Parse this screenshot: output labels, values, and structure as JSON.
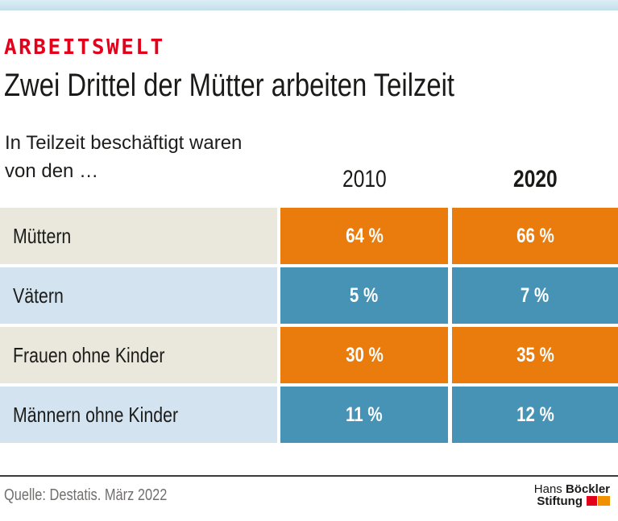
{
  "page": {
    "background": "#ffffff",
    "topbar_color": "#cfe6f0"
  },
  "header": {
    "kicker": "ARBEITSWELT",
    "kicker_color": "#e2001a",
    "title": "Zwei Drittel der Mütter arbeiten Teilzeit",
    "subtitle_line1": "In Teilzeit beschäftigt waren",
    "subtitle_line2": "von den …"
  },
  "table": {
    "columns": [
      {
        "label": "2010",
        "bold": false
      },
      {
        "label": "2020",
        "bold": true
      }
    ],
    "rows": [
      {
        "label": "Müttern",
        "values": [
          "64 %",
          "66 %"
        ],
        "cell_color": "#ea7c0e",
        "label_bg": "#eae7dc"
      },
      {
        "label": "Vätern",
        "values": [
          "5 %",
          "7 %"
        ],
        "cell_color": "#4793b6",
        "label_bg": "#d3e3ef"
      },
      {
        "label": "Frauen ohne Kinder",
        "values": [
          "30 %",
          "35 %"
        ],
        "cell_color": "#ea7c0e",
        "label_bg": "#eae7dc"
      },
      {
        "label": "Männern ohne Kinder",
        "values": [
          "11 %",
          "12 %"
        ],
        "cell_color": "#4793b6",
        "label_bg": "#d3e3ef"
      }
    ],
    "colors": {
      "orange": "#ea7c0e",
      "blue": "#4793b6",
      "label_beige": "#eae7dc",
      "label_lightblue": "#d3e3ef",
      "value_text": "#ffffff"
    }
  },
  "footer": {
    "source": "Quelle: Destatis. März 2022",
    "logo": {
      "line1_regular": "Hans",
      "line1_bold": "Böckler",
      "line2_bold": "Stiftung",
      "mark_red_color": "#e2001a",
      "mark_orange_color": "#f29100"
    }
  },
  "chart_data": {
    "type": "table",
    "kicker": "ARBEITSWELT",
    "title": "Zwei Drittel der Mütter arbeiten Teilzeit",
    "subtitle": "In Teilzeit beschäftigt waren von den …",
    "categories": [
      "Müttern",
      "Vätern",
      "Frauen ohne Kinder",
      "Männern ohne Kinder"
    ],
    "series": [
      {
        "name": "2010",
        "values": [
          64,
          5,
          30,
          11
        ]
      },
      {
        "name": "2020",
        "values": [
          66,
          7,
          35,
          12
        ]
      }
    ],
    "unit": "%",
    "category_colors": [
      "#ea7c0e",
      "#4793b6",
      "#ea7c0e",
      "#4793b6"
    ],
    "source": "Quelle: Destatis. März 2022",
    "legend_position": "column-headers",
    "grid": false
  }
}
